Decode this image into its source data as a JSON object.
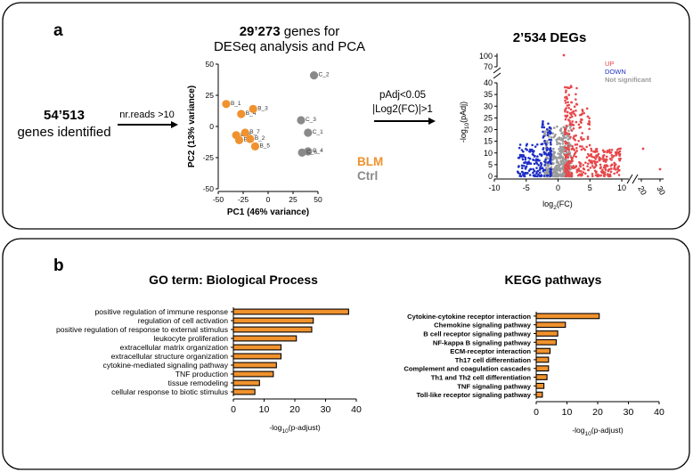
{
  "panel_a": {
    "label": "a",
    "genes_total": "54’513",
    "genes_total_label": "genes identified",
    "filter_label": "nr.reads >10",
    "deseq_title_num": "29’273",
    "deseq_title_rest": " genes for",
    "deseq_title_line2": "DESeq analysis and PCA",
    "threshold_line1": "pAdj<0.05",
    "threshold_line2": "|Log2(FC)|>1",
    "degs_num": "2’534",
    "degs_rest": " DEGs"
  },
  "panel_b": {
    "label": "b"
  },
  "chart_data": [
    {
      "id": "pca",
      "type": "scatter",
      "xlabel": "PC1 (46% variance)",
      "ylabel": "PC2 (13% variance)",
      "xlim": [
        -50,
        50
      ],
      "ylim": [
        -50,
        50
      ],
      "xticks": [
        "-50",
        "-25",
        "0",
        "25",
        "50"
      ],
      "yticks": [
        "50",
        "25",
        "0",
        "-25",
        "-50"
      ],
      "legend": [
        {
          "name": "BLM",
          "color": "#f0922e"
        },
        {
          "name": "Ctrl",
          "color": "#8a8a8a"
        }
      ],
      "points": [
        {
          "label": "B_1",
          "group": "BLM",
          "x": -42,
          "y": 18
        },
        {
          "label": "B_4",
          "group": "BLM",
          "x": -27,
          "y": 10
        },
        {
          "label": "B_3",
          "group": "BLM",
          "x": -15,
          "y": 14
        },
        {
          "label": "B_6",
          "group": "BLM",
          "x": -32,
          "y": -7
        },
        {
          "label": "B_7",
          "group": "BLM",
          "x": -23,
          "y": -5
        },
        {
          "label": "B_8",
          "group": "BLM",
          "x": -29,
          "y": -11
        },
        {
          "label": "B_2",
          "group": "BLM",
          "x": -18,
          "y": -10
        },
        {
          "label": "B_5",
          "group": "BLM",
          "x": -13,
          "y": -16
        },
        {
          "label": "C_2",
          "group": "Ctrl",
          "x": 46,
          "y": 41
        },
        {
          "label": "C_3",
          "group": "Ctrl",
          "x": 33,
          "y": 5
        },
        {
          "label": "C_1",
          "group": "Ctrl",
          "x": 40,
          "y": -5
        },
        {
          "label": "C_4",
          "group": "Ctrl",
          "x": 40,
          "y": -20
        },
        {
          "label": "C_5",
          "group": "Ctrl",
          "x": 34,
          "y": -21
        }
      ]
    },
    {
      "id": "volcano",
      "type": "scatter",
      "xlabel_main": "log",
      "xlabel_sub": "2",
      "xlabel_tail": "(FC)",
      "ylabel_main": "-log",
      "ylabel_sub": "10",
      "ylabel_tail": "(pAdj)",
      "xlim": [
        -10,
        10
      ],
      "ylim_lower": [
        0,
        40
      ],
      "ylim_upper": [
        70,
        100
      ],
      "xticks": [
        "-10",
        "-5",
        "0",
        "5",
        "10",
        "20",
        "30"
      ],
      "yticks": [
        "0",
        "5",
        "10",
        "15",
        "20",
        "25",
        "30",
        "35",
        "40",
        "70",
        "100"
      ],
      "legend": [
        {
          "name": "UP",
          "color": "#e8474b"
        },
        {
          "name": "DOWN",
          "color": "#1f2fc7"
        },
        {
          "name": "Not significant",
          "color": "#9b9b9b"
        }
      ]
    },
    {
      "id": "go",
      "type": "bar",
      "orientation": "horizontal",
      "title": "GO term: Biological Process",
      "xlabel_main": "-log",
      "xlabel_sub": "10",
      "xlabel_tail": "(p-adjust)",
      "xlim": [
        0,
        40
      ],
      "xticks": [
        "0",
        "10",
        "20",
        "30",
        "40"
      ],
      "categories": [
        "positive regulation of immune response",
        "regulation of cell activation",
        "positive regulation of response to external stimulus",
        "leukocyte proliferation",
        "extracellular matrix organization",
        "extracellular structure organization",
        "cytokine-mediated signaling pathway",
        "TNF production",
        "tissue remodeling",
        "cellular response to biotic stimulus"
      ],
      "values": [
        37.5,
        26,
        25.5,
        20.5,
        15.5,
        15.5,
        14,
        13,
        8.5,
        7
      ]
    },
    {
      "id": "kegg",
      "type": "bar",
      "orientation": "horizontal",
      "title": "KEGG pathways",
      "xlabel_main": "-log",
      "xlabel_sub": "10",
      "xlabel_tail": "(p-adjust)",
      "xlim": [
        0,
        40
      ],
      "xticks": [
        "0",
        "10",
        "20",
        "30",
        "40"
      ],
      "categories": [
        "Cytokine-cytokine receptor interaction",
        "Chemokine signaling pathway",
        "B cell receptor signaling pathway",
        "NF-kappa B signaling pathway",
        "ECM-receptor interaction",
        "Th17 cell differentiation",
        "Complement and coagulation cascades",
        "Th1 and Th2 cell differentiation",
        "TNF signaling pathway",
        "Toll-like receptor signaling pathway"
      ],
      "values": [
        20.5,
        9.5,
        7,
        6.5,
        4.5,
        4,
        4,
        3.5,
        2.5,
        2
      ]
    }
  ]
}
